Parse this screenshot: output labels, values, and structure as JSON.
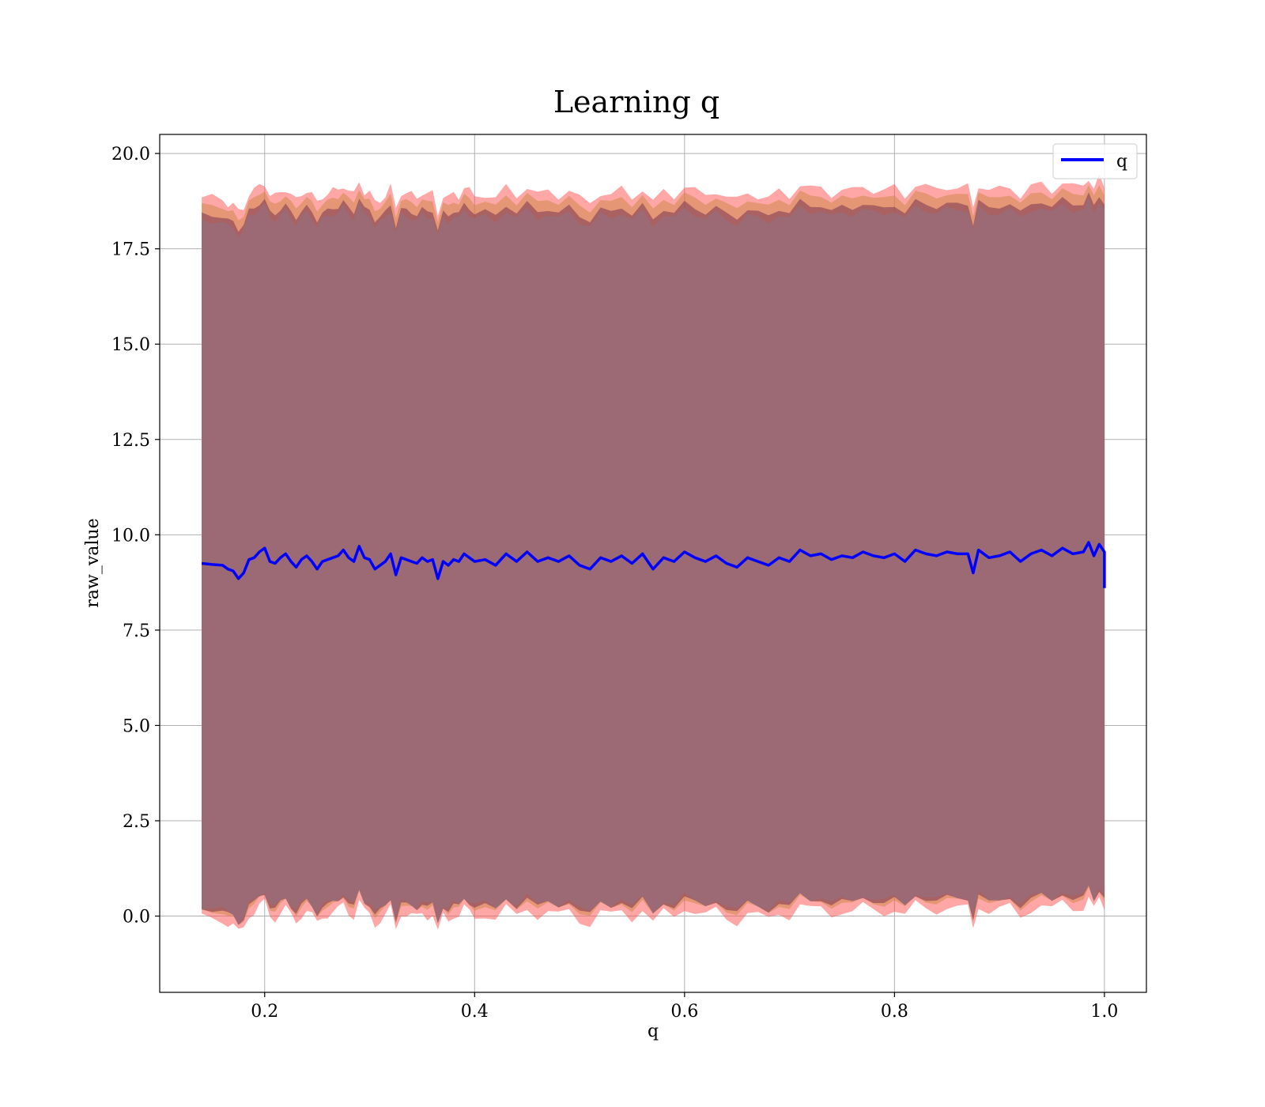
{
  "chart_data": {
    "type": "line",
    "title": "Learning q",
    "xlabel": "q",
    "ylabel": "raw_value",
    "xlim": [
      0.1,
      1.04
    ],
    "ylim": [
      -2.0,
      20.5
    ],
    "xticks": [
      "0.2",
      "0.4",
      "0.6",
      "0.8",
      "1.0"
    ],
    "xtick_values": [
      0.2,
      0.4,
      0.6,
      0.8,
      1.0
    ],
    "yticks": [
      "0.0",
      "2.5",
      "5.0",
      "7.5",
      "10.0",
      "12.5",
      "15.0",
      "17.5",
      "20.0"
    ],
    "ytick_values": [
      0.0,
      2.5,
      5.0,
      7.5,
      10.0,
      12.5,
      15.0,
      17.5,
      20.0
    ],
    "grid": true,
    "legend_position": "top-right",
    "series": [
      {
        "name": "q",
        "color": "#0000ff",
        "x": [
          0.14,
          0.15,
          0.16,
          0.165,
          0.17,
          0.175,
          0.18,
          0.185,
          0.19,
          0.195,
          0.2,
          0.205,
          0.21,
          0.215,
          0.22,
          0.225,
          0.23,
          0.235,
          0.24,
          0.245,
          0.25,
          0.255,
          0.26,
          0.265,
          0.27,
          0.275,
          0.28,
          0.285,
          0.29,
          0.295,
          0.3,
          0.305,
          0.31,
          0.315,
          0.32,
          0.325,
          0.33,
          0.335,
          0.34,
          0.345,
          0.35,
          0.355,
          0.36,
          0.365,
          0.37,
          0.375,
          0.38,
          0.385,
          0.39,
          0.395,
          0.4,
          0.41,
          0.42,
          0.43,
          0.44,
          0.45,
          0.46,
          0.47,
          0.48,
          0.49,
          0.5,
          0.51,
          0.52,
          0.53,
          0.54,
          0.55,
          0.56,
          0.57,
          0.58,
          0.59,
          0.6,
          0.61,
          0.62,
          0.63,
          0.64,
          0.65,
          0.66,
          0.67,
          0.68,
          0.69,
          0.7,
          0.71,
          0.72,
          0.73,
          0.74,
          0.75,
          0.76,
          0.77,
          0.78,
          0.79,
          0.8,
          0.81,
          0.82,
          0.83,
          0.84,
          0.85,
          0.86,
          0.87,
          0.875,
          0.88,
          0.89,
          0.9,
          0.91,
          0.92,
          0.93,
          0.94,
          0.95,
          0.96,
          0.97,
          0.98,
          0.985,
          0.99,
          0.995,
          1.0,
          1.0
        ],
        "y": [
          9.25,
          9.22,
          9.2,
          9.1,
          9.05,
          8.85,
          9.0,
          9.35,
          9.4,
          9.55,
          9.65,
          9.3,
          9.25,
          9.4,
          9.5,
          9.3,
          9.15,
          9.35,
          9.45,
          9.3,
          9.1,
          9.3,
          9.35,
          9.4,
          9.45,
          9.6,
          9.4,
          9.3,
          9.7,
          9.4,
          9.35,
          9.1,
          9.2,
          9.3,
          9.5,
          8.95,
          9.4,
          9.35,
          9.3,
          9.25,
          9.4,
          9.3,
          9.35,
          8.85,
          9.3,
          9.2,
          9.35,
          9.3,
          9.5,
          9.4,
          9.3,
          9.35,
          9.2,
          9.5,
          9.3,
          9.55,
          9.3,
          9.4,
          9.3,
          9.45,
          9.2,
          9.1,
          9.4,
          9.3,
          9.45,
          9.25,
          9.5,
          9.1,
          9.4,
          9.3,
          9.55,
          9.4,
          9.3,
          9.45,
          9.25,
          9.15,
          9.4,
          9.3,
          9.2,
          9.4,
          9.3,
          9.6,
          9.45,
          9.5,
          9.35,
          9.45,
          9.4,
          9.55,
          9.45,
          9.4,
          9.5,
          9.3,
          9.6,
          9.5,
          9.45,
          9.55,
          9.5,
          9.5,
          9.0,
          9.6,
          9.4,
          9.45,
          9.55,
          9.3,
          9.5,
          9.6,
          9.45,
          9.65,
          9.5,
          9.55,
          9.8,
          9.45,
          9.75,
          9.55,
          8.6
        ]
      }
    ],
    "bands": [
      {
        "upper_offset": 9.6,
        "lower_offset": -9.3,
        "color": "#ff4d4d",
        "opacity": 0.5
      },
      {
        "upper_offset": 9.4,
        "lower_offset": -9.1,
        "color": "#cc8844",
        "opacity": 0.5
      },
      {
        "upper_offset": 9.15,
        "lower_offset": -9.05,
        "color": "#7a3550",
        "opacity": 0.55
      },
      {
        "upper_offset": 9.0,
        "lower_offset": -9.0,
        "color": "#9c6a74",
        "opacity": 1.0
      }
    ]
  }
}
